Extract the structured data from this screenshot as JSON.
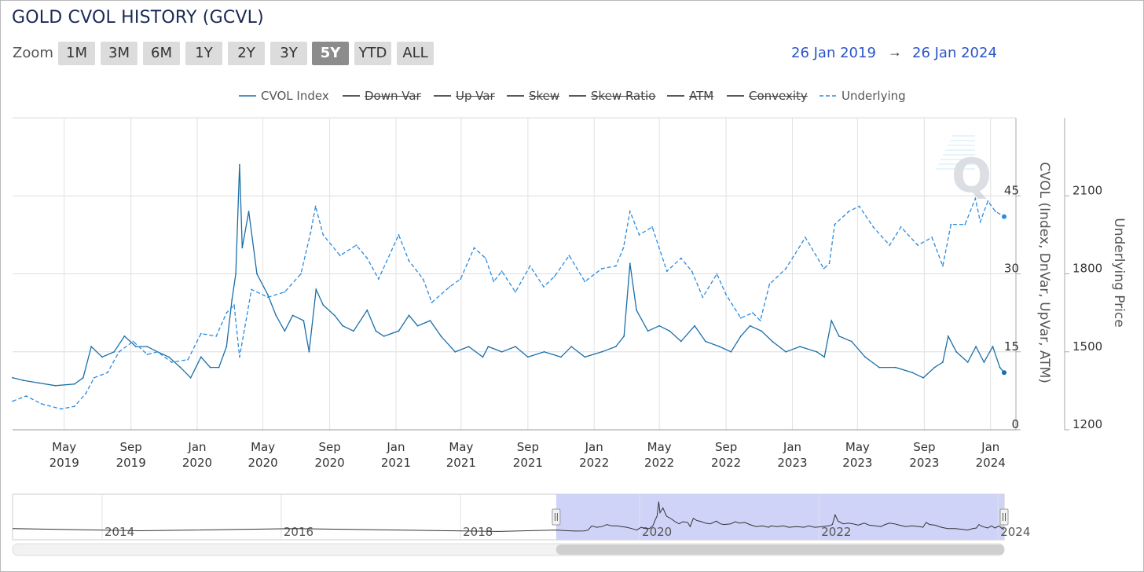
{
  "title": "GOLD CVOL HISTORY (GCVL)",
  "zoom": {
    "label": "Zoom",
    "buttons": [
      "1M",
      "3M",
      "6M",
      "1Y",
      "2Y",
      "3Y",
      "5Y",
      "YTD",
      "ALL"
    ],
    "active": "5Y"
  },
  "range": {
    "from": "26 Jan 2019",
    "arrow": "→",
    "to": "26 Jan 2024"
  },
  "colors": {
    "cvol": "#1a6fa8",
    "underlying": "#2b8be0",
    "navigator_fill": "#c7cbf6",
    "range_text": "#2a55c9"
  },
  "legend": [
    {
      "label": "CVOL Index",
      "style": "solid",
      "enabled": true
    },
    {
      "label": "Down Var",
      "style": "solid",
      "enabled": false
    },
    {
      "label": "Up Var",
      "style": "solid",
      "enabled": false
    },
    {
      "label": "Skew",
      "style": "solid",
      "enabled": false
    },
    {
      "label": "Skew Ratio",
      "style": "solid",
      "enabled": false
    },
    {
      "label": "ATM",
      "style": "solid",
      "enabled": false
    },
    {
      "label": "Convexity",
      "style": "solid",
      "enabled": false
    },
    {
      "label": "Underlying",
      "style": "dashed",
      "enabled": true
    }
  ],
  "axes": {
    "y_left_title": "CVOL (Index, DnVar, UpVar, ATM)",
    "y_right_title": "Underlying Price"
  },
  "chart_data": {
    "type": "line",
    "x_range": [
      "2019-01-26",
      "2024-01-26"
    ],
    "x_ticks": [
      {
        "date": "2019-05-01",
        "label": [
          "May",
          "2019"
        ]
      },
      {
        "date": "2019-09-01",
        "label": [
          "Sep",
          "2019"
        ]
      },
      {
        "date": "2020-01-01",
        "label": [
          "Jan",
          "2020"
        ]
      },
      {
        "date": "2020-05-01",
        "label": [
          "May",
          "2020"
        ]
      },
      {
        "date": "2020-09-01",
        "label": [
          "Sep",
          "2020"
        ]
      },
      {
        "date": "2021-01-01",
        "label": [
          "Jan",
          "2021"
        ]
      },
      {
        "date": "2021-05-01",
        "label": [
          "May",
          "2021"
        ]
      },
      {
        "date": "2021-09-01",
        "label": [
          "Sep",
          "2021"
        ]
      },
      {
        "date": "2022-01-01",
        "label": [
          "Jan",
          "2022"
        ]
      },
      {
        "date": "2022-05-01",
        "label": [
          "May",
          "2022"
        ]
      },
      {
        "date": "2022-09-01",
        "label": [
          "Sep",
          "2022"
        ]
      },
      {
        "date": "2023-01-01",
        "label": [
          "Jan",
          "2023"
        ]
      },
      {
        "date": "2023-05-01",
        "label": [
          "May",
          "2023"
        ]
      },
      {
        "date": "2023-09-01",
        "label": [
          "Sep",
          "2023"
        ]
      },
      {
        "date": "2024-01-01",
        "label": [
          "Jan",
          "2024"
        ]
      }
    ],
    "y_left": {
      "ticks": [
        0,
        15,
        30,
        45
      ],
      "range": [
        0,
        60
      ]
    },
    "y_right": {
      "ticks": [
        1200,
        1500,
        1800,
        2100
      ],
      "range": [
        1200,
        2400
      ]
    },
    "series": [
      {
        "name": "CVOL Index",
        "axis": "left",
        "style": "solid",
        "points": [
          [
            "2019-01-26",
            10
          ],
          [
            "2019-02-15",
            9.5
          ],
          [
            "2019-03-15",
            9
          ],
          [
            "2019-04-15",
            8.5
          ],
          [
            "2019-05-20",
            8.8
          ],
          [
            "2019-06-05",
            10
          ],
          [
            "2019-06-20",
            16
          ],
          [
            "2019-07-10",
            14
          ],
          [
            "2019-08-01",
            15
          ],
          [
            "2019-08-20",
            18
          ],
          [
            "2019-09-10",
            16
          ],
          [
            "2019-10-01",
            16
          ],
          [
            "2019-10-20",
            15
          ],
          [
            "2019-11-10",
            14
          ],
          [
            "2019-12-01",
            12
          ],
          [
            "2019-12-20",
            10
          ],
          [
            "2020-01-08",
            14
          ],
          [
            "2020-01-25",
            12
          ],
          [
            "2020-02-10",
            12
          ],
          [
            "2020-02-24",
            16
          ],
          [
            "2020-03-05",
            25
          ],
          [
            "2020-03-12",
            30
          ],
          [
            "2020-03-19",
            51
          ],
          [
            "2020-03-24",
            35
          ],
          [
            "2020-04-05",
            42
          ],
          [
            "2020-04-20",
            30
          ],
          [
            "2020-05-10",
            26
          ],
          [
            "2020-05-25",
            22
          ],
          [
            "2020-06-10",
            19
          ],
          [
            "2020-06-25",
            22
          ],
          [
            "2020-07-15",
            21
          ],
          [
            "2020-07-25",
            15
          ],
          [
            "2020-08-07",
            27
          ],
          [
            "2020-08-20",
            24
          ],
          [
            "2020-09-10",
            22
          ],
          [
            "2020-09-25",
            20
          ],
          [
            "2020-10-15",
            19
          ],
          [
            "2020-11-09",
            23
          ],
          [
            "2020-11-25",
            19
          ],
          [
            "2020-12-10",
            18
          ],
          [
            "2021-01-06",
            19
          ],
          [
            "2021-01-25",
            22
          ],
          [
            "2021-02-10",
            20
          ],
          [
            "2021-03-05",
            21
          ],
          [
            "2021-03-25",
            18
          ],
          [
            "2021-04-20",
            15
          ],
          [
            "2021-05-15",
            16
          ],
          [
            "2021-06-10",
            14
          ],
          [
            "2021-06-20",
            16
          ],
          [
            "2021-07-15",
            15
          ],
          [
            "2021-08-09",
            16
          ],
          [
            "2021-09-01",
            14
          ],
          [
            "2021-10-01",
            15
          ],
          [
            "2021-11-01",
            14
          ],
          [
            "2021-11-20",
            16
          ],
          [
            "2021-12-15",
            14
          ],
          [
            "2022-01-15",
            15
          ],
          [
            "2022-02-10",
            16
          ],
          [
            "2022-02-25",
            18
          ],
          [
            "2022-03-08",
            32
          ],
          [
            "2022-03-20",
            23
          ],
          [
            "2022-04-10",
            19
          ],
          [
            "2022-05-01",
            20
          ],
          [
            "2022-05-20",
            19
          ],
          [
            "2022-06-10",
            17
          ],
          [
            "2022-07-05",
            20
          ],
          [
            "2022-07-25",
            17
          ],
          [
            "2022-08-20",
            16
          ],
          [
            "2022-09-10",
            15
          ],
          [
            "2022-09-28",
            18
          ],
          [
            "2022-10-15",
            20
          ],
          [
            "2022-11-05",
            19
          ],
          [
            "2022-11-25",
            17
          ],
          [
            "2022-12-20",
            15
          ],
          [
            "2023-01-15",
            16
          ],
          [
            "2023-02-15",
            15
          ],
          [
            "2023-03-01",
            14
          ],
          [
            "2023-03-14",
            21
          ],
          [
            "2023-03-28",
            18
          ],
          [
            "2023-04-20",
            17
          ],
          [
            "2023-05-15",
            14
          ],
          [
            "2023-06-10",
            12
          ],
          [
            "2023-07-10",
            12
          ],
          [
            "2023-08-10",
            11
          ],
          [
            "2023-08-30",
            10
          ],
          [
            "2023-09-20",
            12
          ],
          [
            "2023-10-05",
            13
          ],
          [
            "2023-10-15",
            18
          ],
          [
            "2023-10-30",
            15
          ],
          [
            "2023-11-20",
            13
          ],
          [
            "2023-12-05",
            16
          ],
          [
            "2023-12-20",
            13
          ],
          [
            "2024-01-05",
            16
          ],
          [
            "2024-01-18",
            12
          ],
          [
            "2024-01-26",
            11
          ]
        ]
      },
      {
        "name": "Underlying",
        "axis": "right",
        "style": "dashed",
        "points": [
          [
            "2019-01-26",
            1310
          ],
          [
            "2019-02-20",
            1330
          ],
          [
            "2019-03-20",
            1300
          ],
          [
            "2019-04-25",
            1280
          ],
          [
            "2019-05-20",
            1290
          ],
          [
            "2019-06-10",
            1340
          ],
          [
            "2019-06-25",
            1400
          ],
          [
            "2019-07-20",
            1420
          ],
          [
            "2019-08-10",
            1500
          ],
          [
            "2019-09-05",
            1540
          ],
          [
            "2019-10-01",
            1490
          ],
          [
            "2019-10-20",
            1500
          ],
          [
            "2019-11-15",
            1460
          ],
          [
            "2019-12-15",
            1470
          ],
          [
            "2020-01-08",
            1570
          ],
          [
            "2020-02-05",
            1560
          ],
          [
            "2020-02-24",
            1650
          ],
          [
            "2020-03-09",
            1680
          ],
          [
            "2020-03-19",
            1480
          ],
          [
            "2020-04-10",
            1740
          ],
          [
            "2020-05-10",
            1710
          ],
          [
            "2020-06-10",
            1730
          ],
          [
            "2020-07-10",
            1800
          ],
          [
            "2020-07-28",
            1960
          ],
          [
            "2020-08-06",
            2060
          ],
          [
            "2020-08-20",
            1950
          ],
          [
            "2020-09-20",
            1870
          ],
          [
            "2020-10-20",
            1910
          ],
          [
            "2020-11-09",
            1860
          ],
          [
            "2020-11-30",
            1780
          ],
          [
            "2021-01-06",
            1950
          ],
          [
            "2021-01-25",
            1850
          ],
          [
            "2021-02-20",
            1780
          ],
          [
            "2021-03-08",
            1690
          ],
          [
            "2021-04-10",
            1750
          ],
          [
            "2021-04-30",
            1780
          ],
          [
            "2021-05-25",
            1900
          ],
          [
            "2021-06-15",
            1860
          ],
          [
            "2021-06-30",
            1770
          ],
          [
            "2021-07-15",
            1810
          ],
          [
            "2021-08-09",
            1730
          ],
          [
            "2021-09-05",
            1830
          ],
          [
            "2021-09-30",
            1750
          ],
          [
            "2021-10-20",
            1790
          ],
          [
            "2021-11-16",
            1870
          ],
          [
            "2021-12-15",
            1770
          ],
          [
            "2022-01-15",
            1820
          ],
          [
            "2022-02-10",
            1830
          ],
          [
            "2022-02-24",
            1900
          ],
          [
            "2022-03-08",
            2040
          ],
          [
            "2022-03-25",
            1950
          ],
          [
            "2022-04-18",
            1980
          ],
          [
            "2022-05-15",
            1810
          ],
          [
            "2022-06-10",
            1860
          ],
          [
            "2022-06-30",
            1810
          ],
          [
            "2022-07-20",
            1710
          ],
          [
            "2022-08-15",
            1800
          ],
          [
            "2022-09-01",
            1720
          ],
          [
            "2022-09-28",
            1630
          ],
          [
            "2022-10-20",
            1650
          ],
          [
            "2022-11-03",
            1620
          ],
          [
            "2022-11-20",
            1760
          ],
          [
            "2022-12-20",
            1820
          ],
          [
            "2023-01-25",
            1940
          ],
          [
            "2023-02-28",
            1820
          ],
          [
            "2023-03-10",
            1840
          ],
          [
            "2023-03-20",
            1990
          ],
          [
            "2023-04-15",
            2040
          ],
          [
            "2023-05-04",
            2060
          ],
          [
            "2023-05-30",
            1980
          ],
          [
            "2023-06-29",
            1910
          ],
          [
            "2023-07-20",
            1980
          ],
          [
            "2023-08-20",
            1910
          ],
          [
            "2023-09-15",
            1940
          ],
          [
            "2023-10-05",
            1830
          ],
          [
            "2023-10-20",
            1990
          ],
          [
            "2023-11-15",
            1990
          ],
          [
            "2023-12-04",
            2090
          ],
          [
            "2023-12-13",
            2000
          ],
          [
            "2023-12-27",
            2080
          ],
          [
            "2024-01-10",
            2040
          ],
          [
            "2024-01-26",
            2020
          ]
        ]
      }
    ]
  },
  "navigator": {
    "labels": [
      "2014",
      "2016",
      "2018",
      "2020",
      "2022",
      "2024"
    ],
    "selection": [
      "2019-01-26",
      "2024-01-26"
    ],
    "full_range": [
      "2013-01-01",
      "2024-01-26"
    ],
    "handle_glyph": "||"
  }
}
